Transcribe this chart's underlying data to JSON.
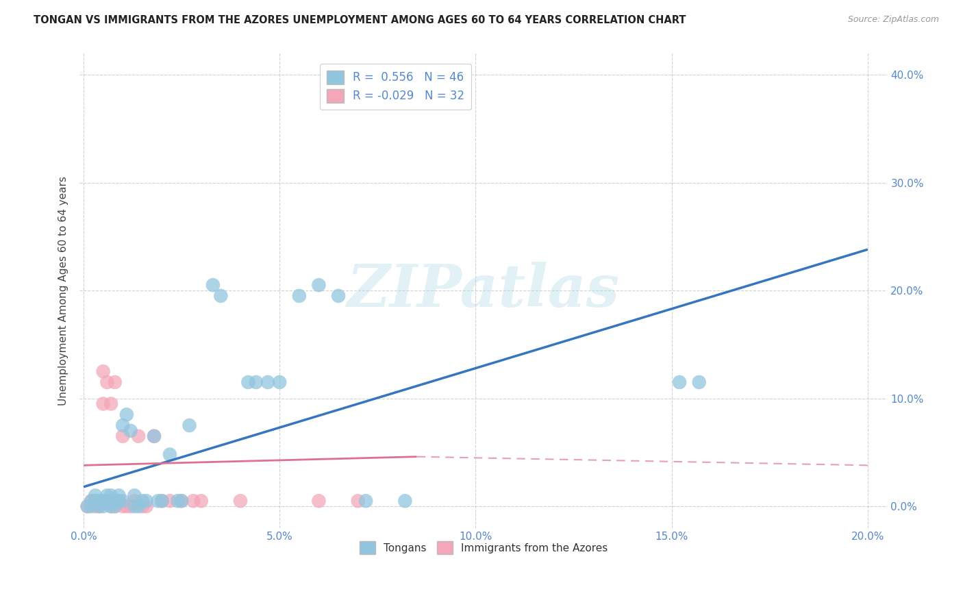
{
  "title": "TONGAN VS IMMIGRANTS FROM THE AZORES UNEMPLOYMENT AMONG AGES 60 TO 64 YEARS CORRELATION CHART",
  "source": "Source: ZipAtlas.com",
  "ylabel": "Unemployment Among Ages 60 to 64 years",
  "xlim": [
    -0.001,
    0.205
  ],
  "ylim": [
    -0.02,
    0.42
  ],
  "xticks": [
    0.0,
    0.05,
    0.1,
    0.15,
    0.2
  ],
  "yticks": [
    0.0,
    0.1,
    0.2,
    0.3,
    0.4
  ],
  "xtick_labels": [
    "0.0%",
    "5.0%",
    "10.0%",
    "15.0%",
    "20.0%"
  ],
  "ytick_labels_right": [
    "0.0%",
    "10.0%",
    "20.0%",
    "30.0%",
    "40.0%"
  ],
  "tongan_color": "#92C5DE",
  "azores_color": "#F4A7B9",
  "tongan_R": 0.556,
  "tongan_N": 46,
  "azores_R": -0.029,
  "azores_N": 32,
  "tongan_line_color": "#3675C0",
  "azores_line_color_solid": "#E07090",
  "azores_line_color_dash": "#E8A0B0",
  "watermark": "ZIPatlas",
  "background_color": "#FFFFFF",
  "grid_color": "#CCCCCC",
  "tick_color": "#5588CC",
  "tongan_line": [
    [
      0.0,
      0.018
    ],
    [
      0.2,
      0.238
    ]
  ],
  "azores_line_solid": [
    [
      0.0,
      0.038
    ],
    [
      0.085,
      0.046
    ]
  ],
  "azores_line_dash": [
    [
      0.085,
      0.046
    ],
    [
      0.2,
      0.038
    ]
  ],
  "tongan_scatter": [
    [
      0.001,
      0.0
    ],
    [
      0.002,
      0.0
    ],
    [
      0.002,
      0.005
    ],
    [
      0.003,
      0.005
    ],
    [
      0.003,
      0.01
    ],
    [
      0.004,
      0.0
    ],
    [
      0.004,
      0.005
    ],
    [
      0.005,
      0.0
    ],
    [
      0.005,
      0.005
    ],
    [
      0.006,
      0.005
    ],
    [
      0.006,
      0.01
    ],
    [
      0.007,
      0.0
    ],
    [
      0.007,
      0.01
    ],
    [
      0.008,
      0.005
    ],
    [
      0.008,
      0.0
    ],
    [
      0.009,
      0.01
    ],
    [
      0.009,
      0.005
    ],
    [
      0.01,
      0.005
    ],
    [
      0.01,
      0.075
    ],
    [
      0.011,
      0.085
    ],
    [
      0.012,
      0.07
    ],
    [
      0.013,
      0.0
    ],
    [
      0.013,
      0.01
    ],
    [
      0.014,
      0.0
    ],
    [
      0.015,
      0.005
    ],
    [
      0.016,
      0.005
    ],
    [
      0.018,
      0.065
    ],
    [
      0.019,
      0.005
    ],
    [
      0.02,
      0.005
    ],
    [
      0.022,
      0.048
    ],
    [
      0.024,
      0.005
    ],
    [
      0.025,
      0.005
    ],
    [
      0.027,
      0.075
    ],
    [
      0.033,
      0.205
    ],
    [
      0.035,
      0.195
    ],
    [
      0.042,
      0.115
    ],
    [
      0.044,
      0.115
    ],
    [
      0.047,
      0.115
    ],
    [
      0.05,
      0.115
    ],
    [
      0.055,
      0.195
    ],
    [
      0.06,
      0.205
    ],
    [
      0.065,
      0.195
    ],
    [
      0.072,
      0.005
    ],
    [
      0.082,
      0.005
    ],
    [
      0.152,
      0.115
    ],
    [
      0.157,
      0.115
    ]
  ],
  "azores_scatter": [
    [
      0.001,
      0.0
    ],
    [
      0.002,
      0.005
    ],
    [
      0.003,
      0.0
    ],
    [
      0.003,
      0.005
    ],
    [
      0.004,
      0.0
    ],
    [
      0.004,
      0.005
    ],
    [
      0.005,
      0.125
    ],
    [
      0.005,
      0.095
    ],
    [
      0.006,
      0.115
    ],
    [
      0.006,
      0.005
    ],
    [
      0.007,
      0.0
    ],
    [
      0.007,
      0.095
    ],
    [
      0.008,
      0.115
    ],
    [
      0.008,
      0.0
    ],
    [
      0.009,
      0.005
    ],
    [
      0.01,
      0.065
    ],
    [
      0.01,
      0.0
    ],
    [
      0.011,
      0.0
    ],
    [
      0.012,
      0.0
    ],
    [
      0.013,
      0.005
    ],
    [
      0.014,
      0.065
    ],
    [
      0.015,
      0.0
    ],
    [
      0.016,
      0.0
    ],
    [
      0.018,
      0.065
    ],
    [
      0.02,
      0.005
    ],
    [
      0.022,
      0.005
    ],
    [
      0.025,
      0.005
    ],
    [
      0.028,
      0.005
    ],
    [
      0.03,
      0.005
    ],
    [
      0.04,
      0.005
    ],
    [
      0.06,
      0.005
    ],
    [
      0.07,
      0.005
    ]
  ]
}
